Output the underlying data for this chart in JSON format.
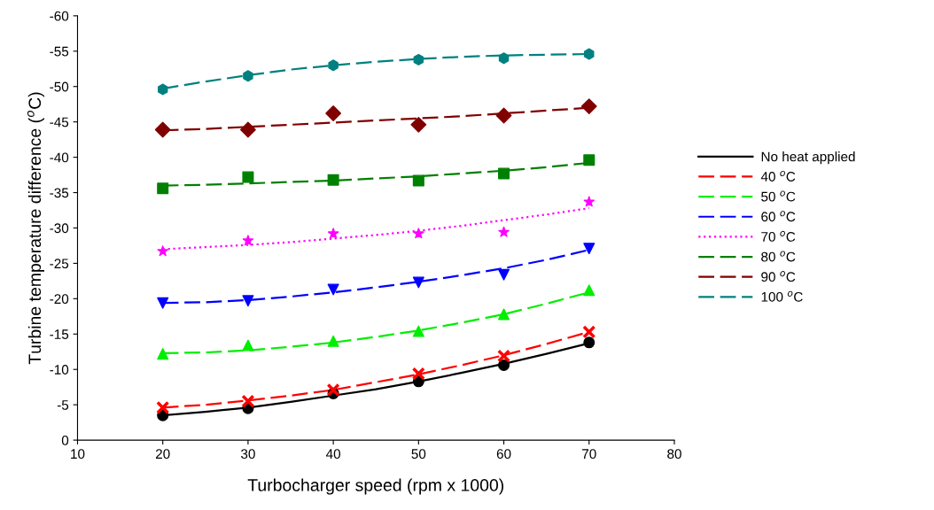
{
  "chart_data": {
    "type": "line",
    "xlabel": "Turbocharger speed (rpm x 1000)",
    "ylabel": "Turbine temperature difference ($^{o}$C)",
    "xlim": [
      10,
      80
    ],
    "xticks": [
      10,
      20,
      30,
      40,
      50,
      60,
      70,
      80
    ],
    "ylim": [
      0,
      -60
    ],
    "yticks": [
      0,
      -5,
      -10,
      -15,
      -20,
      -25,
      -30,
      -35,
      -40,
      -45,
      -50,
      -55,
      -60
    ],
    "grid": false,
    "legend": "right",
    "series": [
      {
        "name": "No heat applied",
        "color": "#000000",
        "line_style": "solid",
        "marker": "none",
        "x": [
          20,
          25,
          30,
          35,
          40,
          45,
          50,
          55,
          60,
          65,
          70
        ],
        "values": [
          -3.5,
          -4.0,
          -4.6,
          -5.4,
          -6.3,
          -7.2,
          -8.3,
          -9.5,
          -10.8,
          -12.2,
          -13.7
        ]
      },
      {
        "name": "40 $^{o}$C",
        "color": "#ff0000",
        "line_style": "dashed",
        "marker": "none",
        "x": [
          20,
          25,
          30,
          35,
          40,
          45,
          50,
          55,
          60,
          65,
          70
        ],
        "values": [
          -4.6,
          -5.0,
          -5.6,
          -6.3,
          -7.1,
          -8.2,
          -9.3,
          -10.6,
          -12.0,
          -13.6,
          -15.3
        ]
      },
      {
        "name": "50 $^{o}$C",
        "color": "#00ee00",
        "line_style": "dashed",
        "marker": "none",
        "x": [
          20,
          25,
          30,
          35,
          40,
          45,
          50,
          55,
          60,
          65,
          70
        ],
        "values": [
          -12.3,
          -12.4,
          -12.7,
          -13.2,
          -13.8,
          -14.6,
          -15.5,
          -16.6,
          -17.8,
          -19.3,
          -20.9
        ]
      },
      {
        "name": "60 $^{o}$C",
        "color": "#0000ff",
        "line_style": "dashed",
        "marker": "none",
        "x": [
          20,
          25,
          30,
          35,
          40,
          45,
          50,
          55,
          60,
          65,
          70
        ],
        "values": [
          -19.4,
          -19.5,
          -19.8,
          -20.3,
          -20.9,
          -21.6,
          -22.4,
          -23.3,
          -24.3,
          -25.5,
          -26.9
        ]
      },
      {
        "name": "70 $^{o}$C",
        "color": "#ff00ff",
        "line_style": "dotted",
        "marker": "none",
        "x": [
          20,
          25,
          30,
          35,
          40,
          45,
          50,
          55,
          60,
          65,
          70
        ],
        "values": [
          -27.0,
          -27.3,
          -27.6,
          -28.0,
          -28.5,
          -29.0,
          -29.6,
          -30.3,
          -31.1,
          -31.9,
          -32.8
        ]
      },
      {
        "name": "80 $^{o}$C",
        "color": "#008000",
        "line_style": "dashed",
        "marker": "none",
        "x": [
          20,
          25,
          30,
          35,
          40,
          45,
          50,
          55,
          60,
          65,
          70
        ],
        "values": [
          -36.0,
          -36.1,
          -36.3,
          -36.5,
          -36.7,
          -37.0,
          -37.3,
          -37.7,
          -38.1,
          -38.6,
          -39.2
        ]
      },
      {
        "name": "90 $^{o}$C",
        "color": "#800000",
        "line_style": "dashed",
        "marker": "none",
        "x": [
          20,
          25,
          30,
          35,
          40,
          45,
          50,
          55,
          60,
          65,
          70
        ],
        "values": [
          -43.8,
          -44.0,
          -44.3,
          -44.6,
          -44.9,
          -45.2,
          -45.5,
          -45.8,
          -46.2,
          -46.6,
          -47.0
        ]
      },
      {
        "name": "100 $^{o}$C",
        "color": "#008080",
        "line_style": "dashed",
        "marker": "none",
        "x": [
          20,
          25,
          30,
          35,
          40,
          45,
          50,
          55,
          60,
          65,
          70
        ],
        "values": [
          -49.7,
          -50.7,
          -51.6,
          -52.4,
          -53.0,
          -53.5,
          -53.9,
          -54.2,
          -54.4,
          -54.5,
          -54.6
        ]
      },
      {
        "type": "scatter",
        "color": "#000000",
        "marker": "circle",
        "x": [
          20,
          30,
          40,
          50,
          60,
          70
        ],
        "values": [
          -3.5,
          -4.5,
          -6.6,
          -8.3,
          -10.6,
          -13.8
        ]
      },
      {
        "type": "scatter",
        "color": "#ff0000",
        "marker": "cross",
        "x": [
          20,
          30,
          40,
          50,
          60,
          70
        ],
        "values": [
          -4.6,
          -5.5,
          -7.1,
          -9.4,
          -11.9,
          -15.3
        ]
      },
      {
        "type": "scatter",
        "color": "#00ee00",
        "marker": "triangle",
        "x": [
          20,
          30,
          40,
          50,
          60,
          70
        ],
        "values": [
          -12.2,
          -13.4,
          -14.0,
          -15.4,
          -17.8,
          -21.2
        ]
      },
      {
        "type": "scatter",
        "color": "#0000ff",
        "marker": "triangle_down",
        "x": [
          20,
          30,
          40,
          50,
          60,
          70
        ],
        "values": [
          -19.4,
          -19.7,
          -21.3,
          -22.3,
          -23.4,
          -27.1
        ]
      },
      {
        "type": "scatter",
        "color": "#ff00ff",
        "marker": "star",
        "x": [
          20,
          30,
          40,
          50,
          60,
          70
        ],
        "values": [
          -26.7,
          -28.2,
          -29.2,
          -29.2,
          -29.4,
          -33.7
        ]
      },
      {
        "type": "scatter",
        "color": "#008000",
        "marker": "square",
        "x": [
          20,
          30,
          40,
          50,
          60,
          70
        ],
        "values": [
          -35.6,
          -37.2,
          -36.8,
          -36.7,
          -37.7,
          -39.6
        ]
      },
      {
        "type": "scatter",
        "color": "#800000",
        "marker": "diamond",
        "x": [
          20,
          30,
          40,
          50,
          60,
          70
        ],
        "values": [
          -43.9,
          -43.9,
          -46.2,
          -44.6,
          -45.9,
          -47.2
        ]
      },
      {
        "type": "scatter",
        "color": "#008080",
        "x": [
          20,
          30,
          40,
          50,
          60,
          70
        ],
        "values": [
          -49.6,
          -51.5,
          -53.0,
          -53.8,
          -54.0,
          -54.6
        ]
      }
    ]
  }
}
